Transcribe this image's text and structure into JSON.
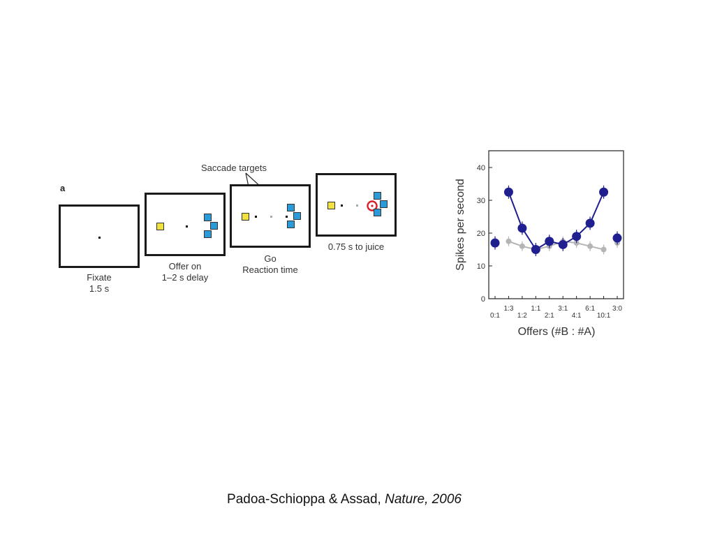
{
  "panel_letter": "a",
  "saccade_label": "Saccade targets",
  "stages": [
    {
      "line1": "Fixate",
      "line2": "1.5 s"
    },
    {
      "line1": "Offer on",
      "line2": "1–2 s delay"
    },
    {
      "line1": "Go",
      "line2": "Reaction time"
    },
    {
      "line1": "0.75 s to juice",
      "line2": ""
    }
  ],
  "colors": {
    "juice_a": "#f0e040",
    "juice_b": "#2a9ad8",
    "target_ring": "#d8202a",
    "series_main": "#1f1f8f",
    "series_gray": "#b5b5b5"
  },
  "chart_data": {
    "type": "line",
    "xlabel": "Offers (#B : #A)",
    "ylabel": "Spikes per second",
    "ylim": [
      0,
      45
    ],
    "yticks": [
      0,
      10,
      20,
      30,
      40
    ],
    "categories": [
      "0:1",
      "1:3",
      "1:2",
      "1:1",
      "2:1",
      "3:1",
      "4:1",
      "6:1",
      "10:1",
      "3:0"
    ],
    "series": [
      {
        "name": "",
        "values": [
          17,
          32.5,
          21.5,
          15,
          17.5,
          16.5,
          19,
          23,
          32.5,
          18.5
        ],
        "connected": [
          false,
          true,
          true,
          true,
          true,
          true,
          true,
          true,
          true,
          false
        ]
      },
      {
        "name": "",
        "values": [
          17.5,
          17.5,
          16,
          15,
          16,
          17.5,
          17,
          16,
          15,
          17
        ],
        "connected": [
          false,
          true,
          true,
          true,
          true,
          true,
          true,
          true,
          true,
          false
        ]
      }
    ]
  },
  "citation": {
    "authors": "Padoa-Schioppa & Assad,",
    "journal": "Nature, 2006"
  }
}
